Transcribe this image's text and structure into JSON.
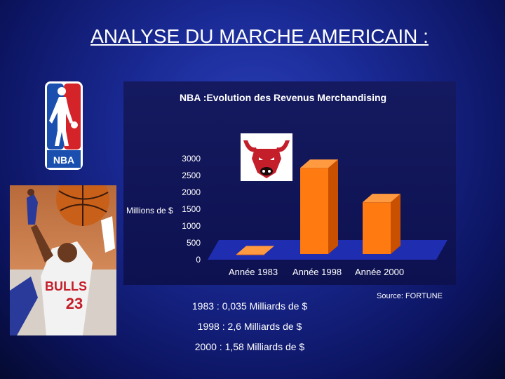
{
  "slide": {
    "title": "ANALYSE DU MARCHE AMERICAIN :",
    "source": "Source: FORTUNE",
    "notes": [
      {
        "year": "1983",
        "text": " : 0,035 Milliards de $"
      },
      {
        "year": "1998",
        "text": " : 2,6 Milliards de $"
      },
      {
        "year": "2000",
        "text": " : 1,58 Milliards de $"
      }
    ],
    "logo_text": "NBA"
  },
  "chart_data": {
    "type": "bar",
    "title": "NBA :Evolution des Revenus Merchandising",
    "ylabel": "Millions de $",
    "xlabel": "",
    "categories": [
      "Année 1983",
      "Année 1998",
      "Année 2000"
    ],
    "values": [
      35,
      2600,
      1580
    ],
    "ylim": [
      0,
      3000
    ],
    "yticks": [
      0,
      500,
      1000,
      1500,
      2000,
      2500,
      3000
    ],
    "colors": {
      "bar": "#ff7a10",
      "bar_side": "#c85000",
      "bar_top": "#ff9a40",
      "floor": "#1f2db0"
    }
  }
}
